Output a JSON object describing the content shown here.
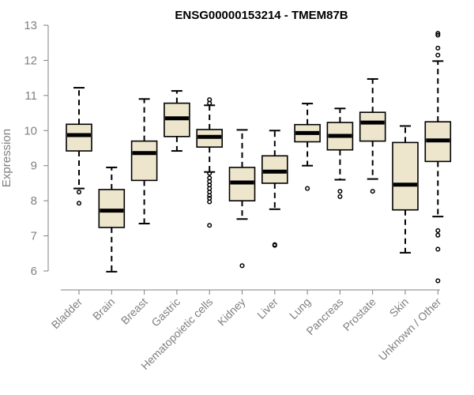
{
  "chart_data": {
    "type": "boxplot",
    "title": "ENSG00000153214 - TMEM87B",
    "xlabel": "",
    "ylabel": "Expression",
    "ylim": [
      5.6,
      13
    ],
    "yticks": [
      6,
      7,
      8,
      9,
      10,
      11,
      12,
      13
    ],
    "categories": [
      "Bladder",
      "Brain",
      "Breast",
      "Gastric",
      "Hematopoietic cells",
      "Kidney",
      "Liver",
      "Lung",
      "Pancreas",
      "Prostate",
      "Skin",
      "Unknown / Other"
    ],
    "series": [
      {
        "name": "Bladder",
        "whisker_low": 8.35,
        "q1": 9.42,
        "median": 9.87,
        "q3": 10.18,
        "whisker_high": 11.22,
        "outliers": [
          8.25,
          7.93
        ]
      },
      {
        "name": "Brain",
        "whisker_low": 5.98,
        "q1": 7.24,
        "median": 7.72,
        "q3": 8.32,
        "whisker_high": 8.95,
        "outliers": []
      },
      {
        "name": "Breast",
        "whisker_low": 7.35,
        "q1": 8.58,
        "median": 9.36,
        "q3": 9.7,
        "whisker_high": 10.9,
        "outliers": []
      },
      {
        "name": "Gastric",
        "whisker_low": 9.42,
        "q1": 9.83,
        "median": 10.35,
        "q3": 10.78,
        "whisker_high": 11.13,
        "outliers": []
      },
      {
        "name": "Hematopoietic cells",
        "whisker_low": 8.82,
        "q1": 9.53,
        "median": 9.82,
        "q3": 10.03,
        "whisker_high": 10.72,
        "outliers": [
          10.88,
          10.78,
          8.78,
          8.65,
          8.55,
          8.45,
          8.35,
          8.25,
          8.15,
          8.07,
          7.97,
          7.3
        ]
      },
      {
        "name": "Kidney",
        "whisker_low": 7.48,
        "q1": 8.0,
        "median": 8.52,
        "q3": 8.95,
        "whisker_high": 10.02,
        "outliers": [
          6.15
        ]
      },
      {
        "name": "Liver",
        "whisker_low": 7.76,
        "q1": 8.5,
        "median": 8.83,
        "q3": 9.28,
        "whisker_high": 10.0,
        "outliers": [
          6.75,
          6.73
        ]
      },
      {
        "name": "Lung",
        "whisker_low": 9.0,
        "q1": 9.68,
        "median": 9.93,
        "q3": 10.17,
        "whisker_high": 10.77,
        "outliers": [
          8.35
        ]
      },
      {
        "name": "Pancreas",
        "whisker_low": 8.6,
        "q1": 9.45,
        "median": 9.85,
        "q3": 10.23,
        "whisker_high": 10.63,
        "outliers": [
          8.27,
          8.12
        ]
      },
      {
        "name": "Prostate",
        "whisker_low": 8.62,
        "q1": 9.7,
        "median": 10.23,
        "q3": 10.52,
        "whisker_high": 11.47,
        "outliers": [
          8.27
        ]
      },
      {
        "name": "Skin",
        "whisker_low": 6.52,
        "q1": 7.74,
        "median": 8.46,
        "q3": 9.66,
        "whisker_high": 10.13,
        "outliers": []
      },
      {
        "name": "Unknown / Other",
        "whisker_low": 7.55,
        "q1": 9.12,
        "median": 9.72,
        "q3": 10.25,
        "whisker_high": 11.98,
        "outliers": [
          12.77,
          12.72,
          12.35,
          12.15,
          7.15,
          7.02,
          6.62,
          5.72
        ]
      }
    ]
  }
}
